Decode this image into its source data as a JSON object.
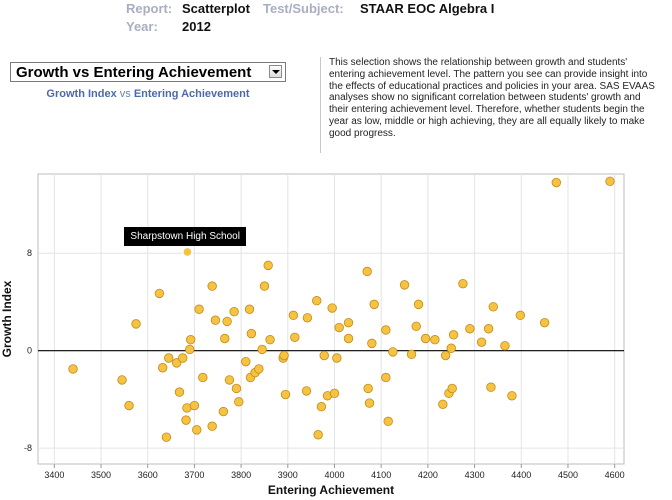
{
  "header": {
    "report_label": "Report:",
    "report_value": "Scatterplot",
    "subject_label": "Test/Subject:",
    "subject_value": "STAAR EOC Algebra I",
    "year_label": "Year:",
    "year_value": "2012"
  },
  "selector": {
    "selected": "Growth vs Entering Achievement",
    "sub_x": "Growth Index",
    "sub_vs": " vs ",
    "sub_y": "Entering Achievement"
  },
  "description": "This selection shows the relationship between growth and students' entering achievement level. The pattern you see can provide insight into the effects of educational practices and policies in your area. SAS EVAAS analyses show no significant correlation between students' growth and their entering achievement level. Therefore, whether students begin the year as low, middle or high achieving, they are all equally likely to make good progress.",
  "tooltip": "Sharpstown High School",
  "colors": {
    "point": "#f5c342",
    "point_stroke": "#c48a1a",
    "zero_line": "#000000"
  },
  "chart_data": {
    "type": "scatter",
    "xlabel": "Entering Achievement",
    "ylabel": "Growth Index",
    "xlim": [
      3365,
      4620
    ],
    "ylim": [
      -9.3,
      14.5
    ],
    "xticks": [
      3400,
      3500,
      3600,
      3700,
      3800,
      3900,
      4000,
      4100,
      4200,
      4300,
      4400,
      4500,
      4600
    ],
    "yticks": [
      -8,
      0,
      8
    ],
    "grid": true,
    "highlight": {
      "name": "Sharpstown High School",
      "x": 3685,
      "y": 8.1
    },
    "points": [
      [
        3440,
        -1.5
      ],
      [
        3545,
        -2.4
      ],
      [
        3560,
        -4.5
      ],
      [
        3575,
        2.2
      ],
      [
        3625,
        4.7
      ],
      [
        3632,
        -1.4
      ],
      [
        3640,
        -7.1
      ],
      [
        3645,
        -0.6
      ],
      [
        3662,
        -1.0
      ],
      [
        3668,
        -3.4
      ],
      [
        3675,
        -0.6
      ],
      [
        3682,
        -5.7
      ],
      [
        3684,
        -4.7
      ],
      [
        3690,
        0.1
      ],
      [
        3692,
        0.9
      ],
      [
        3700,
        -4.5
      ],
      [
        3705,
        -6.5
      ],
      [
        3710,
        3.4
      ],
      [
        3718,
        -2.2
      ],
      [
        3738,
        5.3
      ],
      [
        3738,
        -6.2
      ],
      [
        3745,
        2.5
      ],
      [
        3762,
        -5.0
      ],
      [
        3765,
        1.0
      ],
      [
        3770,
        2.4
      ],
      [
        3775,
        -2.4
      ],
      [
        3785,
        3.2
      ],
      [
        3790,
        -3.1
      ],
      [
        3795,
        -4.2
      ],
      [
        3810,
        -0.9
      ],
      [
        3818,
        3.4
      ],
      [
        3820,
        -2.2
      ],
      [
        3822,
        1.4
      ],
      [
        3830,
        -1.8
      ],
      [
        3838,
        -1.5
      ],
      [
        3845,
        0.1
      ],
      [
        3850,
        5.3
      ],
      [
        3858,
        7.0
      ],
      [
        3862,
        0.9
      ],
      [
        3890,
        -0.6
      ],
      [
        3892,
        -0.4
      ],
      [
        3895,
        -3.6
      ],
      [
        3912,
        2.9
      ],
      [
        3915,
        1.1
      ],
      [
        3940,
        -3.3
      ],
      [
        3942,
        2.7
      ],
      [
        3962,
        4.1
      ],
      [
        3965,
        -6.9
      ],
      [
        3972,
        -4.6
      ],
      [
        3978,
        -0.4
      ],
      [
        3985,
        -3.7
      ],
      [
        3995,
        3.5
      ],
      [
        4000,
        -3.5
      ],
      [
        4005,
        -0.6
      ],
      [
        4010,
        1.9
      ],
      [
        4030,
        2.3
      ],
      [
        4030,
        1.0
      ],
      [
        4070,
        6.5
      ],
      [
        4072,
        -3.1
      ],
      [
        4075,
        -4.3
      ],
      [
        4085,
        3.8
      ],
      [
        4080,
        0.6
      ],
      [
        4110,
        1.7
      ],
      [
        4110,
        -2.2
      ],
      [
        4115,
        -5.8
      ],
      [
        4125,
        -0.1
      ],
      [
        4150,
        5.4
      ],
      [
        4165,
        -0.3
      ],
      [
        4175,
        2.0
      ],
      [
        4180,
        3.8
      ],
      [
        4195,
        1.0
      ],
      [
        4215,
        0.9
      ],
      [
        4232,
        -4.4
      ],
      [
        4238,
        -0.4
      ],
      [
        4245,
        -3.5
      ],
      [
        4250,
        0.2
      ],
      [
        4252,
        -3.1
      ],
      [
        4255,
        1.3
      ],
      [
        4275,
        5.5
      ],
      [
        4290,
        1.8
      ],
      [
        4315,
        0.7
      ],
      [
        4330,
        1.8
      ],
      [
        4335,
        -3.0
      ],
      [
        4340,
        3.6
      ],
      [
        4365,
        0.4
      ],
      [
        4380,
        -3.7
      ],
      [
        4398,
        2.9
      ],
      [
        4450,
        2.3
      ],
      [
        4475,
        13.8
      ],
      [
        4590,
        13.9
      ]
    ]
  }
}
